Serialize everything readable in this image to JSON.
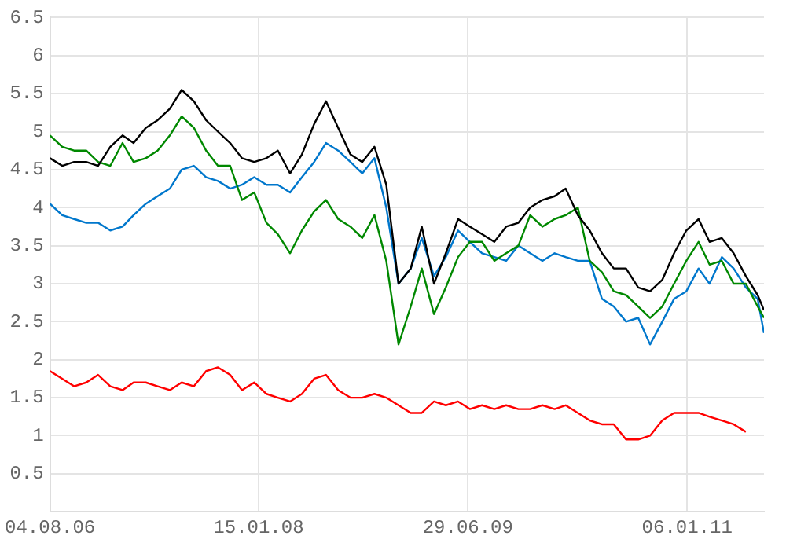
{
  "chart_data": {
    "type": "line",
    "x": [
      "2006-08-04",
      "2006-09-04",
      "2006-10-04",
      "2006-11-04",
      "2006-12-04",
      "2007-01-04",
      "2007-02-04",
      "2007-03-04",
      "2007-04-04",
      "2007-05-04",
      "2007-06-04",
      "2007-07-04",
      "2007-08-04",
      "2007-09-04",
      "2007-10-04",
      "2007-11-04",
      "2007-12-04",
      "2008-01-04",
      "2008-02-04",
      "2008-03-04",
      "2008-04-04",
      "2008-05-04",
      "2008-06-04",
      "2008-07-04",
      "2008-08-04",
      "2008-09-04",
      "2008-10-04",
      "2008-11-04",
      "2008-12-04",
      "2009-01-04",
      "2009-02-04",
      "2009-03-04",
      "2009-04-04",
      "2009-05-04",
      "2009-06-04",
      "2009-07-04",
      "2009-08-04",
      "2009-09-04",
      "2009-10-04",
      "2009-11-04",
      "2009-12-04",
      "2010-01-04",
      "2010-02-04",
      "2010-03-04",
      "2010-04-04",
      "2010-05-04",
      "2010-06-04",
      "2010-07-04",
      "2010-08-04",
      "2010-09-04",
      "2010-10-04",
      "2010-11-04",
      "2010-12-04",
      "2011-01-04",
      "2011-02-04",
      "2011-03-04",
      "2011-04-04",
      "2011-05-04",
      "2011-06-04",
      "2011-07-04",
      "2011-07-20"
    ],
    "series": [
      {
        "color": "#000000",
        "values": [
          4.65,
          4.55,
          4.6,
          4.6,
          4.55,
          4.8,
          4.95,
          4.85,
          5.05,
          5.15,
          5.3,
          5.55,
          5.4,
          5.15,
          5.0,
          4.85,
          4.65,
          4.6,
          4.65,
          4.75,
          4.45,
          4.7,
          5.1,
          5.4,
          5.05,
          4.7,
          4.6,
          4.8,
          4.3,
          3.0,
          3.2,
          3.75,
          3.0,
          3.4,
          3.85,
          3.75,
          3.65,
          3.55,
          3.75,
          3.8,
          4.0,
          4.1,
          4.15,
          4.25,
          3.9,
          3.7,
          3.4,
          3.2,
          3.2,
          2.95,
          2.9,
          3.05,
          3.4,
          3.7,
          3.85,
          3.55,
          3.6,
          3.4,
          3.1,
          2.85,
          2.65
        ]
      },
      {
        "color": "#008800",
        "values": [
          4.95,
          4.8,
          4.75,
          4.75,
          4.6,
          4.55,
          4.85,
          4.6,
          4.65,
          4.75,
          4.95,
          5.2,
          5.05,
          4.75,
          4.55,
          4.55,
          4.1,
          4.2,
          3.8,
          3.65,
          3.4,
          3.7,
          3.95,
          4.1,
          3.85,
          3.75,
          3.6,
          3.9,
          3.3,
          2.2,
          2.7,
          3.2,
          2.6,
          2.95,
          3.35,
          3.55,
          3.55,
          3.3,
          3.4,
          3.5,
          3.9,
          3.75,
          3.85,
          3.9,
          4.0,
          3.3,
          3.15,
          2.9,
          2.85,
          2.7,
          2.55,
          2.7,
          3.0,
          3.3,
          3.55,
          3.25,
          3.3,
          3.0,
          3.0,
          2.7,
          2.55
        ]
      },
      {
        "color": "#0077cc",
        "values": [
          4.05,
          3.9,
          3.85,
          3.8,
          3.8,
          3.7,
          3.75,
          3.9,
          4.05,
          4.15,
          4.25,
          4.5,
          4.55,
          4.4,
          4.35,
          4.25,
          4.3,
          4.4,
          4.3,
          4.3,
          4.2,
          4.4,
          4.6,
          4.85,
          4.75,
          4.6,
          4.45,
          4.65,
          4.0,
          3.0,
          3.2,
          3.6,
          3.1,
          3.35,
          3.7,
          3.55,
          3.4,
          3.35,
          3.3,
          3.5,
          3.4,
          3.3,
          3.4,
          3.35,
          3.3,
          3.3,
          2.8,
          2.7,
          2.5,
          2.55,
          2.2,
          2.5,
          2.8,
          2.9,
          3.2,
          3.0,
          3.35,
          3.2,
          2.95,
          2.8,
          2.35
        ]
      },
      {
        "color": "#ff0000",
        "values": [
          1.85,
          1.75,
          1.65,
          1.7,
          1.8,
          1.65,
          1.6,
          1.7,
          1.7,
          1.65,
          1.6,
          1.7,
          1.65,
          1.85,
          1.9,
          1.8,
          1.6,
          1.7,
          1.55,
          1.5,
          1.45,
          1.55,
          1.75,
          1.8,
          1.6,
          1.5,
          1.5,
          1.55,
          1.5,
          1.4,
          1.3,
          1.3,
          1.45,
          1.4,
          1.45,
          1.35,
          1.4,
          1.35,
          1.4,
          1.35,
          1.35,
          1.4,
          1.35,
          1.4,
          1.3,
          1.2,
          1.15,
          1.15,
          0.95,
          0.95,
          1.0,
          1.2,
          1.3,
          1.3,
          1.3,
          1.25,
          1.2,
          1.15,
          1.05,
          null,
          null
        ]
      }
    ],
    "xlim": [
      "2006-08-04",
      "2011-07-20"
    ],
    "xticks": [
      {
        "value": "2006-08-04",
        "label": "04.08.06"
      },
      {
        "value": "2008-01-15",
        "label": "15.01.08"
      },
      {
        "value": "2009-06-29",
        "label": "29.06.09"
      },
      {
        "value": "2011-01-06",
        "label": "06.01.11"
      }
    ],
    "ylim": [
      0,
      6.5
    ],
    "yticks": [
      0.5,
      1,
      1.5,
      2,
      2.5,
      3,
      3.5,
      4,
      4.5,
      5,
      5.5,
      6,
      6.5
    ],
    "grid": true,
    "legend": false,
    "marker": "none",
    "line_style": "solid"
  }
}
